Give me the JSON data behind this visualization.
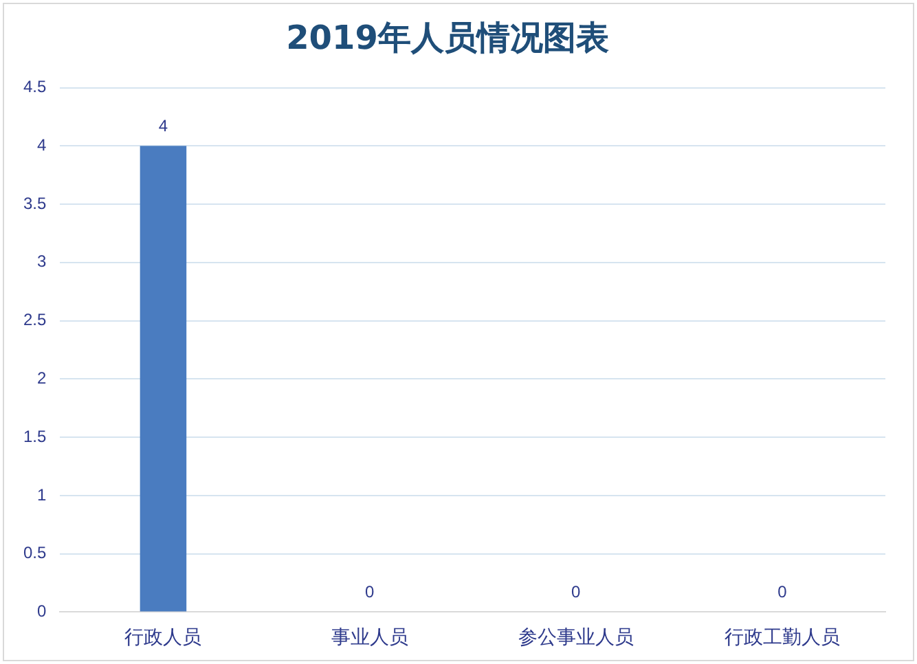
{
  "chart_data": {
    "type": "bar",
    "title": "2019年人员情况图表",
    "categories": [
      "行政人员",
      "事业人员",
      "参公事业人员",
      "行政工勤人员"
    ],
    "values": [
      4,
      0,
      0,
      0
    ],
    "color": "#4a7cc0",
    "ylim": [
      0,
      4.5
    ],
    "yticks": [
      0,
      0.5,
      1,
      1.5,
      2,
      2.5,
      3,
      3.5,
      4,
      4.5
    ],
    "grid": "y",
    "data_labels": true,
    "legend": false
  }
}
